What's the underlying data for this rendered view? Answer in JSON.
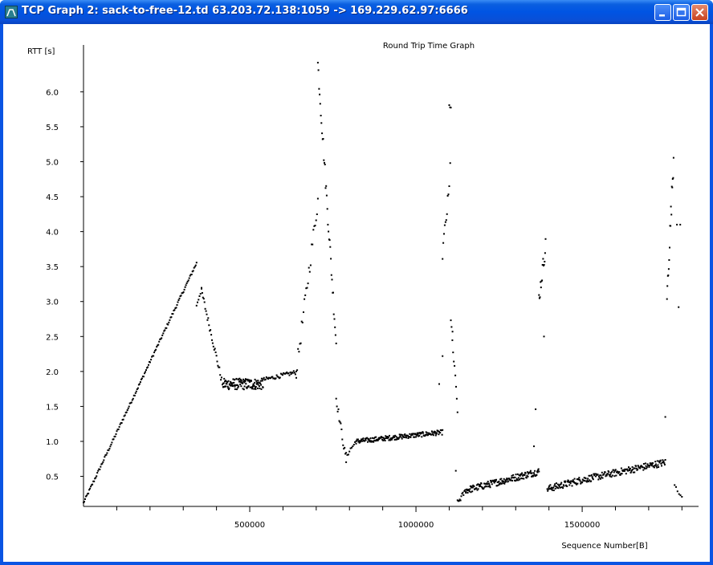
{
  "window": {
    "title": "TCP Graph 2: sack-to-free-12.td 63.203.72.138:1059 -> 169.229.62.97:6666",
    "icon": "tcp-graph-app-icon",
    "controls": [
      "minimize-icon",
      "maximize-icon",
      "close-icon"
    ]
  },
  "chart_data": {
    "type": "scatter",
    "title": "Round Trip Time Graph",
    "xlabel": "Sequence Number[B]",
    "ylabel": "RTT [s]",
    "xlim": [
      0,
      1850000
    ],
    "ylim": [
      0.07,
      6.67
    ],
    "xticks": [
      500000,
      1000000,
      1500000
    ],
    "xtick_labels": [
      "500000",
      "1000000",
      "1500000"
    ],
    "yticks": [
      0.5,
      1.0,
      1.5,
      2.0,
      2.5,
      3.0,
      3.5,
      4.0,
      4.5,
      5.0,
      5.5,
      6.0
    ],
    "ytick_labels": [
      "0.5",
      "1.0",
      "1.5",
      "2.0",
      "2.5",
      "3.0",
      "3.5",
      "4.0",
      "4.5",
      "5.0",
      "5.5",
      "6.0"
    ],
    "grid": false,
    "legend": "none",
    "marker_color": "#000000",
    "segments": [
      {
        "x0": 0,
        "x1": 340000,
        "y0": 0.12,
        "y1": 3.55,
        "n": 140,
        "jitter": 0.02
      },
      {
        "x0": 340000,
        "x1": 355000,
        "y0": 2.95,
        "y1": 3.18,
        "n": 6,
        "jitter": 0.03
      },
      {
        "x0": 355000,
        "x1": 420000,
        "y0": 3.15,
        "y1": 1.78,
        "n": 30,
        "jitter": 0.05
      },
      {
        "x0": 420000,
        "x1": 540000,
        "y0": 1.82,
        "y1": 1.82,
        "n": 120,
        "jitter": 0.08
      },
      {
        "x0": 540000,
        "x1": 640000,
        "y0": 1.88,
        "y1": 1.99,
        "n": 40,
        "jitter": 0.03
      },
      {
        "x0": 640000,
        "x1": 705000,
        "y0": 2.0,
        "y1": 4.45,
        "n": 25,
        "jitter": 0.12
      },
      {
        "x0": 705000,
        "x1": 760000,
        "y0": 6.4,
        "y1": 2.42,
        "n": 32,
        "jitter": 0.12
      },
      {
        "x0": 760000,
        "x1": 790000,
        "y0": 1.62,
        "y1": 0.72,
        "n": 14,
        "jitter": 0.06
      },
      {
        "x0": 790000,
        "x1": 820000,
        "y0": 0.8,
        "y1": 1.0,
        "n": 10,
        "jitter": 0.04
      },
      {
        "x0": 820000,
        "x1": 1080000,
        "y0": 1.0,
        "y1": 1.13,
        "n": 180,
        "jitter": 0.035
      },
      {
        "x0": 1080000,
        "x1": 1100000,
        "y0": 3.7,
        "y1": 4.6,
        "n": 10,
        "jitter": 0.12
      },
      {
        "x0": 1100000,
        "x1": 1105000,
        "y0": 5.8,
        "y1": 5.78,
        "n": 3,
        "jitter": 0.02
      },
      {
        "x0": 1105000,
        "x1": 1125000,
        "y0": 2.7,
        "y1": 1.47,
        "n": 10,
        "jitter": 0.08
      },
      {
        "x0": 1125000,
        "x1": 1150000,
        "y0": 0.12,
        "y1": 0.3,
        "n": 12,
        "jitter": 0.04
      },
      {
        "x0": 1150000,
        "x1": 1370000,
        "y0": 0.3,
        "y1": 0.57,
        "n": 160,
        "jitter": 0.05
      },
      {
        "x0": 1370000,
        "x1": 1390000,
        "y0": 3.05,
        "y1": 3.8,
        "n": 14,
        "jitter": 0.12
      },
      {
        "x0": 1395000,
        "x1": 1500000,
        "y0": 0.32,
        "y1": 0.45,
        "n": 70,
        "jitter": 0.05
      },
      {
        "x0": 1500000,
        "x1": 1750000,
        "y0": 0.45,
        "y1": 0.7,
        "n": 160,
        "jitter": 0.05
      },
      {
        "x0": 1755000,
        "x1": 1775000,
        "y0": 3.05,
        "y1": 5.05,
        "n": 16,
        "jitter": 0.15
      },
      {
        "x0": 1778000,
        "x1": 1800000,
        "y0": 0.4,
        "y1": 0.18,
        "n": 6,
        "jitter": 0.03
      }
    ],
    "points": [
      [
        1070000,
        1.82
      ],
      [
        1080000,
        2.22
      ],
      [
        1103000,
        4.98
      ],
      [
        1110000,
        2.57
      ],
      [
        1120000,
        0.58
      ],
      [
        1355000,
        0.93
      ],
      [
        1360000,
        1.46
      ],
      [
        1385000,
        2.5
      ],
      [
        1750000,
        1.35
      ],
      [
        1785000,
        4.1
      ],
      [
        1790000,
        2.92
      ],
      [
        1795000,
        4.1
      ]
    ]
  }
}
